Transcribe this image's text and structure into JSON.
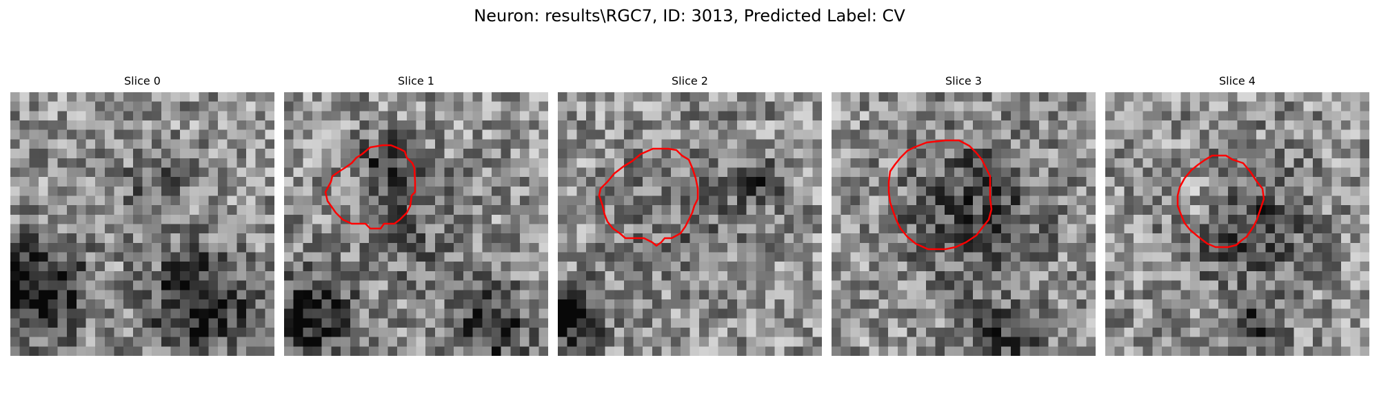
{
  "figure": {
    "title": "Neuron: results\\RGC7, ID: 3013, Predicted Label: CV"
  },
  "panels": [
    {
      "label": "Slice 0",
      "has_contour": false,
      "contour_color": "#ff0000",
      "seed": 11,
      "blobs": [
        [
          0.1,
          0.75,
          0.18,
          -0.55
        ],
        [
          0.72,
          0.8,
          0.2,
          -0.5
        ],
        [
          0.55,
          0.35,
          0.12,
          -0.25
        ]
      ]
    },
    {
      "label": "Slice 1",
      "has_contour": true,
      "contour_color": "#ff0000",
      "seed": 23,
      "blobs": [
        [
          0.1,
          0.85,
          0.15,
          -0.55
        ],
        [
          0.78,
          0.88,
          0.15,
          -0.45
        ],
        [
          0.45,
          0.5,
          0.22,
          -0.2
        ],
        [
          0.4,
          0.25,
          0.1,
          -0.35
        ]
      ]
    },
    {
      "label": "Slice 2",
      "has_contour": true,
      "contour_color": "#ff0000",
      "seed": 37,
      "blobs": [
        [
          0.05,
          0.85,
          0.12,
          -0.6
        ],
        [
          0.5,
          0.45,
          0.28,
          -0.15
        ],
        [
          0.75,
          0.35,
          0.08,
          -0.35
        ]
      ]
    },
    {
      "label": "Slice 3",
      "has_contour": true,
      "contour_color": "#ff0000",
      "seed": 41,
      "blobs": [
        [
          0.55,
          0.45,
          0.28,
          -0.3
        ],
        [
          0.65,
          0.95,
          0.15,
          -0.3
        ]
      ]
    },
    {
      "label": "Slice 4",
      "has_contour": true,
      "contour_color": "#ff0000",
      "seed": 53,
      "blobs": [
        [
          0.52,
          0.5,
          0.25,
          -0.3
        ],
        [
          0.58,
          0.88,
          0.1,
          -0.35
        ],
        [
          0.35,
          0.4,
          0.12,
          0.2
        ]
      ]
    }
  ]
}
